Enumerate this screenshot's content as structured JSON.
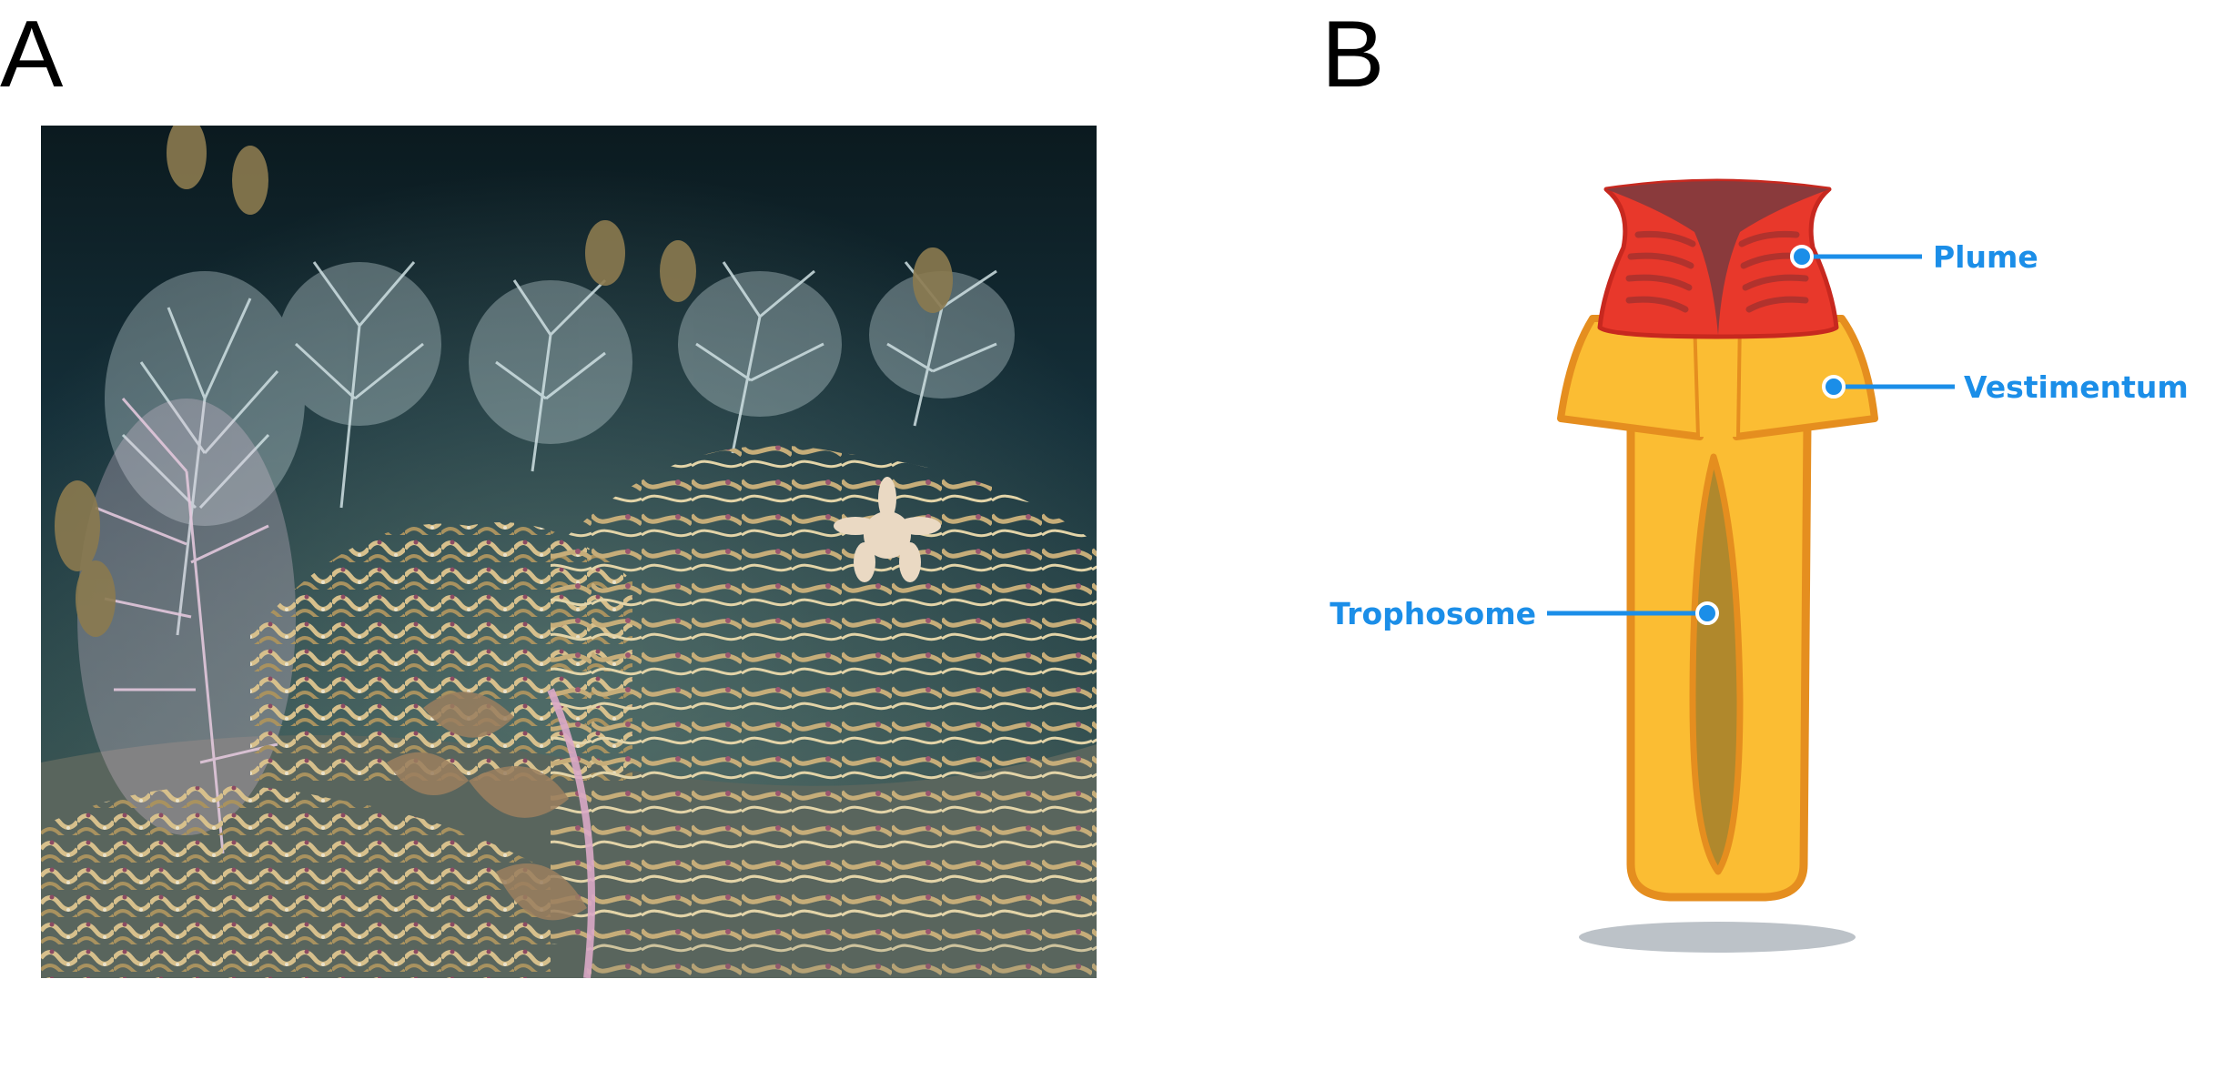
{
  "panels": {
    "a": {
      "label": "A"
    },
    "b": {
      "label": "B"
    }
  },
  "diagram": {
    "callouts": {
      "plume": "Plume",
      "vestimentum": "Vestimentum",
      "trophosome": "Trophosome"
    },
    "colors": {
      "callout": "#1b8ee8",
      "plume": "#e8382b",
      "plume_top": "#8a3a3c",
      "body": "#fbbd33",
      "outline": "#e58e1f",
      "trophosome": "#b0882c",
      "shadow": "#bcc2c8"
    }
  },
  "photo": {
    "subject": "deep-sea tubeworm colony with sea fans and mussels",
    "colors": {
      "water": "#0e1f24",
      "tubes": "#c9b07a",
      "seafan": "#c9dbe0"
    }
  }
}
